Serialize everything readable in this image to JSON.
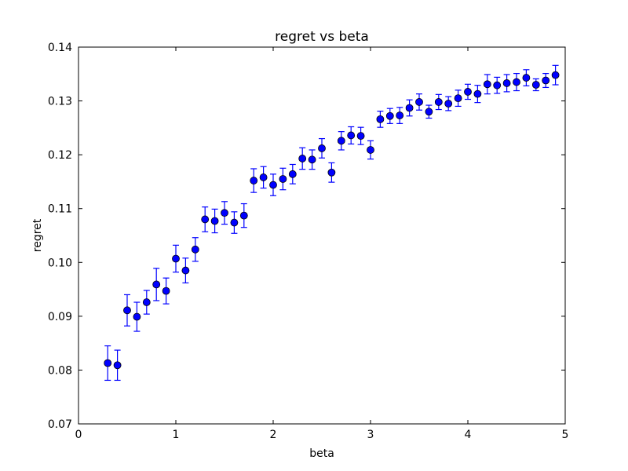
{
  "chart_data": {
    "type": "scatter",
    "title": "regret vs beta",
    "xlabel": "beta",
    "ylabel": "regret",
    "xlim": [
      0,
      5
    ],
    "ylim": [
      0.07,
      0.14
    ],
    "x_ticks": [
      0,
      1,
      2,
      3,
      4,
      5
    ],
    "x_tick_labels": [
      "0",
      "1",
      "2",
      "3",
      "4",
      "5"
    ],
    "y_ticks": [
      0.07,
      0.08,
      0.09,
      0.1,
      0.11,
      0.12,
      0.13,
      0.14
    ],
    "y_tick_labels": [
      "0.07",
      "0.08",
      "0.09",
      "0.10",
      "0.11",
      "0.12",
      "0.13",
      "0.14"
    ],
    "grid": false,
    "error_bars": true,
    "marker_color": "#0000ff",
    "errorbar_color": "#0000ff",
    "series": [
      {
        "x": [
          0.3,
          0.4,
          0.5,
          0.6,
          0.7,
          0.8,
          0.9,
          1.0,
          1.1,
          1.2,
          1.3,
          1.4,
          1.5,
          1.6,
          1.7,
          1.8,
          1.9,
          2.0,
          2.1,
          2.2,
          2.3,
          2.4,
          2.5,
          2.6,
          2.7,
          2.8,
          2.9,
          3.0,
          3.1,
          3.2,
          3.3,
          3.4,
          3.5,
          3.6,
          3.7,
          3.8,
          3.9,
          4.0,
          4.1,
          4.2,
          4.3,
          4.4,
          4.5,
          4.6,
          4.7,
          4.8,
          4.9
        ],
        "y": [
          0.0813,
          0.0809,
          0.0911,
          0.0899,
          0.0926,
          0.0959,
          0.0947,
          0.1007,
          0.0985,
          0.1024,
          0.108,
          0.1077,
          0.1092,
          0.1074,
          0.1087,
          0.1152,
          0.1158,
          0.1144,
          0.1155,
          0.1164,
          0.1193,
          0.1191,
          0.1212,
          0.1167,
          0.1226,
          0.1236,
          0.1235,
          0.1209,
          0.1266,
          0.1272,
          0.1273,
          0.1287,
          0.1298,
          0.128,
          0.1298,
          0.1295,
          0.1305,
          0.1317,
          0.1313,
          0.1331,
          0.1329,
          0.1333,
          0.1335,
          0.1343,
          0.133,
          0.1338,
          0.1348
        ],
        "yerr": [
          0.0032,
          0.0028,
          0.0029,
          0.0027,
          0.0022,
          0.003,
          0.0024,
          0.0025,
          0.0023,
          0.0022,
          0.0023,
          0.0022,
          0.0021,
          0.002,
          0.0022,
          0.0022,
          0.002,
          0.002,
          0.002,
          0.0018,
          0.002,
          0.0018,
          0.0018,
          0.0018,
          0.0017,
          0.0016,
          0.0016,
          0.0017,
          0.0015,
          0.0014,
          0.0015,
          0.0015,
          0.0015,
          0.0012,
          0.0014,
          0.0013,
          0.0015,
          0.0014,
          0.0016,
          0.0018,
          0.0015,
          0.0016,
          0.0016,
          0.0015,
          0.0011,
          0.0013,
          0.0018
        ]
      }
    ]
  }
}
